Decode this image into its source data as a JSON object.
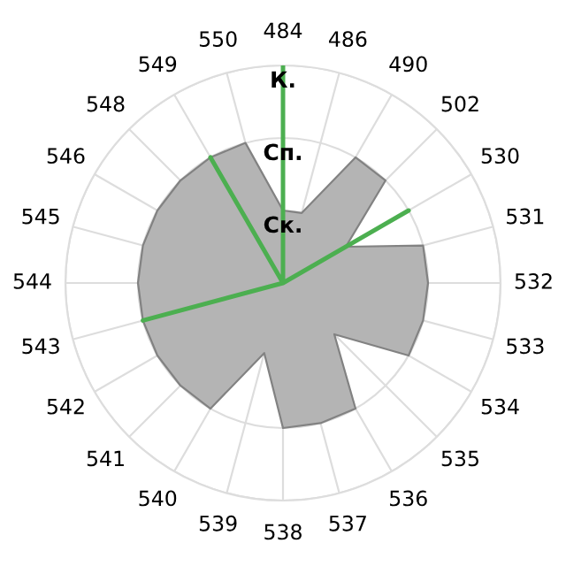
{
  "chart_data": {
    "type": "radar",
    "categories": [
      "484",
      "486",
      "490",
      "502",
      "530",
      "531",
      "532",
      "533",
      "534",
      "535",
      "536",
      "537",
      "538",
      "539",
      "540",
      "541",
      "542",
      "543",
      "544",
      "545",
      "546",
      "548",
      "549",
      "550"
    ],
    "series": [
      {
        "color": "#b4b4b4",
        "values": [
          1,
          1,
          2,
          2,
          1,
          2,
          2,
          2,
          2,
          1,
          2,
          2,
          2,
          1,
          2,
          2,
          2,
          2,
          2,
          2,
          2,
          2,
          2,
          2
        ]
      },
      {
        "color": "#4caf50",
        "values": [
          3,
          0,
          0,
          0,
          2,
          0,
          0,
          0,
          0,
          0,
          0,
          0,
          0,
          0,
          0,
          0,
          0,
          2,
          0,
          0,
          0,
          0,
          2,
          0
        ]
      }
    ],
    "ylim": [
      0,
      3
    ],
    "yticks": [
      {
        "value": 1,
        "label": "Ск."
      },
      {
        "value": 2,
        "label": "Сп."
      },
      {
        "value": 3,
        "label": "К."
      }
    ],
    "grid": true
  }
}
